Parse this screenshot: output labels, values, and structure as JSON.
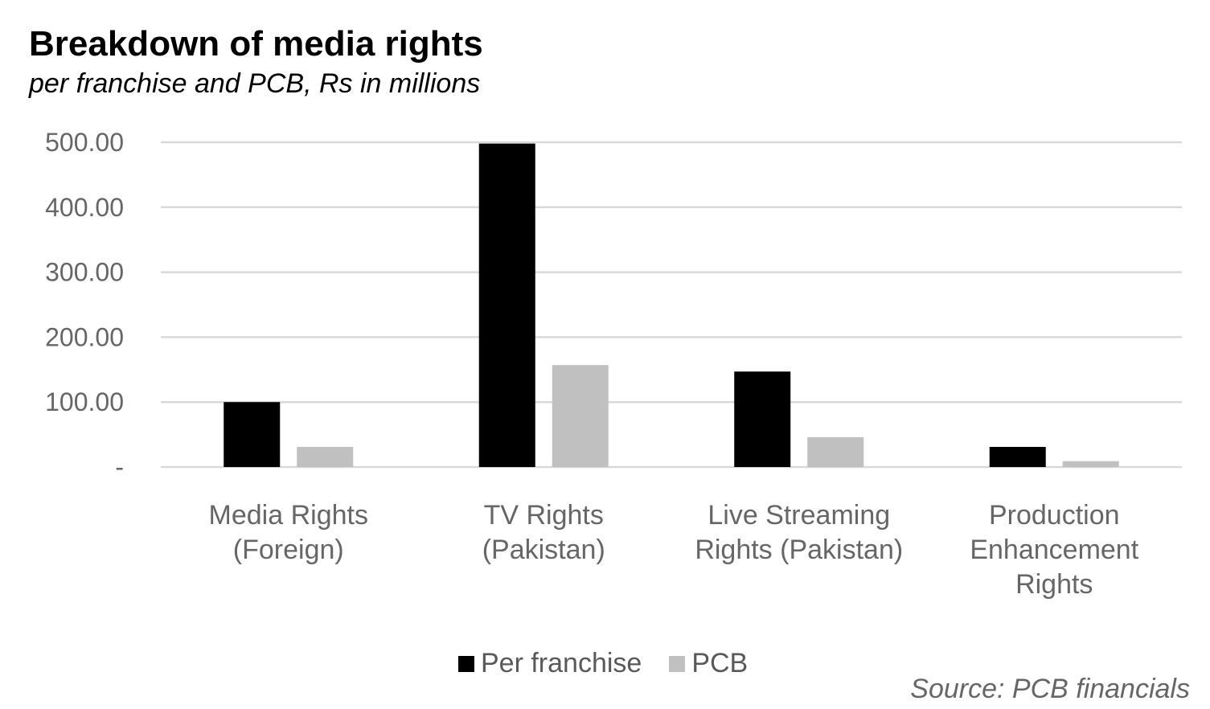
{
  "chart_data": {
    "type": "bar",
    "title": "Breakdown of media rights",
    "subtitle": "per franchise and PCB, Rs in millions",
    "categories": [
      [
        "Media Rights",
        "(Foreign)"
      ],
      [
        "TV Rights",
        "(Pakistan)"
      ],
      [
        "Live Streaming",
        "Rights (Pakistan)"
      ],
      [
        "Production",
        "Enhancement",
        "Rights"
      ]
    ],
    "series": [
      {
        "name": "Per franchise",
        "color": "#000000",
        "values": [
          100,
          498,
          147,
          31
        ]
      },
      {
        "name": "PCB",
        "color": "#c0c0c0",
        "values": [
          31,
          157,
          46,
          9
        ]
      }
    ],
    "ylim": [
      0,
      500
    ],
    "yticks": [
      {
        "value": 0,
        "label": "-"
      },
      {
        "value": 100,
        "label": "100.00"
      },
      {
        "value": 200,
        "label": "200.00"
      },
      {
        "value": 300,
        "label": "300.00"
      },
      {
        "value": 400,
        "label": "400.00"
      },
      {
        "value": 500,
        "label": "500.00"
      }
    ],
    "grid": true,
    "legend_position": "bottom",
    "xlabel": "",
    "ylabel": "",
    "source": "Source: PCB financials"
  }
}
